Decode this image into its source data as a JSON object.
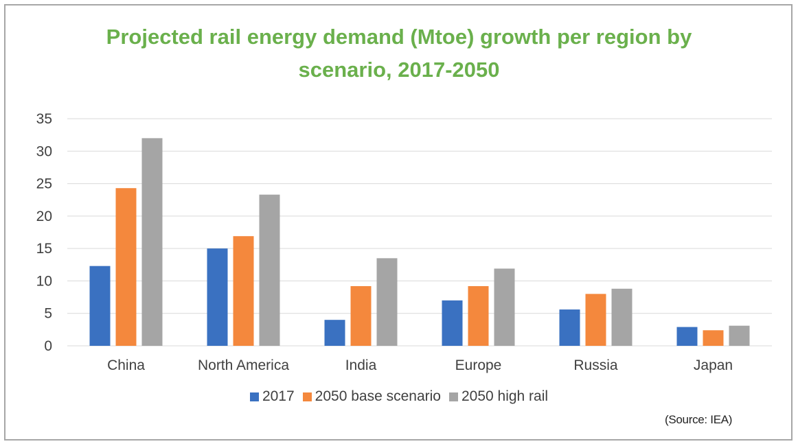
{
  "chart_data": {
    "type": "bar",
    "title_lines": [
      "Projected rail energy demand (Mtoe) growth per region by",
      "scenario, 2017-2050"
    ],
    "categories": [
      "China",
      "North America",
      "India",
      "Europe",
      "Russia",
      "Japan"
    ],
    "series": [
      {
        "name": "2017",
        "color": "#3a71c1",
        "values": [
          12.3,
          15.0,
          4.0,
          7.0,
          5.6,
          2.9
        ]
      },
      {
        "name": "2050 base scenario",
        "color": "#f4883d",
        "values": [
          24.3,
          16.9,
          9.2,
          9.2,
          8.0,
          2.4
        ]
      },
      {
        "name": "2050 high rail",
        "color": "#a5a5a5",
        "values": [
          32.0,
          23.3,
          13.5,
          11.9,
          8.8,
          3.1
        ]
      }
    ],
    "ylim": [
      0,
      35
    ],
    "yticks": [
      0,
      5,
      10,
      15,
      20,
      25,
      30,
      35
    ],
    "grid": true,
    "legend_position": "bottom",
    "xlabel": "",
    "ylabel": ""
  },
  "source_note": "(Source: IEA)"
}
